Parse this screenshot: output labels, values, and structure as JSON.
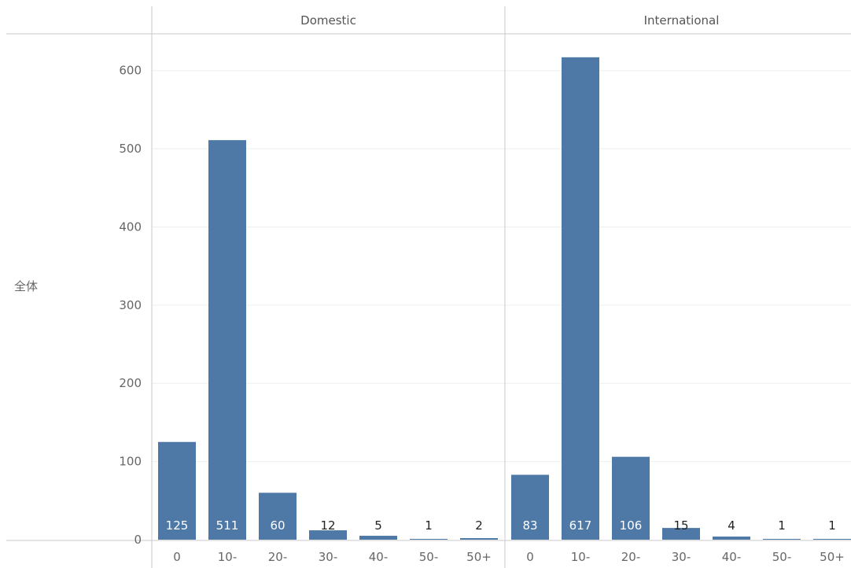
{
  "row_label": "全体",
  "colors": {
    "bar": "#4e79a7",
    "grid": "#eeeeee",
    "divider": "#c8c8c8",
    "axis_text": "#666666"
  },
  "chart_data": {
    "type": "bar",
    "categories": [
      "0",
      "10-",
      "20-",
      "30-",
      "40-",
      "50-",
      "50+"
    ],
    "ylim": [
      0,
      650
    ],
    "yticks": [
      0,
      100,
      200,
      300,
      400,
      500,
      600
    ],
    "grid": true,
    "panels": [
      {
        "name": "Domestic",
        "values": [
          125,
          511,
          60,
          12,
          5,
          1,
          2
        ]
      },
      {
        "name": "International",
        "values": [
          83,
          617,
          106,
          15,
          4,
          1,
          1
        ]
      }
    ]
  }
}
